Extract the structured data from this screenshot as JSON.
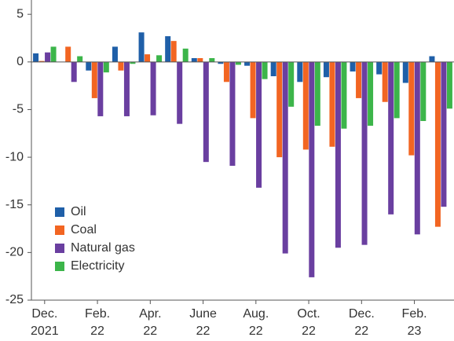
{
  "chart_data": {
    "type": "bar",
    "categories": [
      "Dec. 2021",
      null,
      "Feb. 22",
      null,
      "Apr. 22",
      null,
      "June 22",
      null,
      "Aug. 22",
      null,
      "Oct. 22",
      null,
      "Dec. 22",
      null,
      "Feb. 23",
      null
    ],
    "series": [
      {
        "name": "Oil",
        "color": "#1f5fa8",
        "values": [
          0.9,
          0,
          -0.9,
          1.6,
          3.1,
          2.7,
          0.4,
          -0.2,
          -0.4,
          -1.5,
          -2.1,
          -1.6,
          -1.0,
          -1.3,
          -2.2,
          0.6
        ]
      },
      {
        "name": "Coal",
        "color": "#f26522",
        "values": [
          0.1,
          1.6,
          -3.8,
          -0.9,
          0.8,
          2.2,
          0.4,
          -2.1,
          -5.9,
          -10.0,
          -9.2,
          -8.9,
          -3.8,
          -4.2,
          -9.8,
          -17.3
        ]
      },
      {
        "name": "Natural gas",
        "color": "#6a3fa0",
        "values": [
          1.0,
          -2.1,
          -5.7,
          -5.7,
          -5.6,
          -6.5,
          -10.5,
          -10.9,
          -13.2,
          -20.1,
          -22.6,
          -19.5,
          -19.2,
          -16.0,
          -18.1,
          -15.2
        ]
      },
      {
        "name": "Electricity",
        "color": "#3cb54a",
        "values": [
          1.6,
          0.6,
          -1.1,
          -0.2,
          0.7,
          1.4,
          0.4,
          -0.3,
          -1.8,
          -4.7,
          -6.7,
          -7.0,
          -6.7,
          -5.9,
          -6.2,
          -4.9
        ]
      }
    ],
    "ylim": [
      -25,
      6.5
    ],
    "yticks": [
      -25,
      -20,
      -15,
      -10,
      -5,
      0,
      5
    ],
    "grid": false,
    "legend": "lower left"
  }
}
